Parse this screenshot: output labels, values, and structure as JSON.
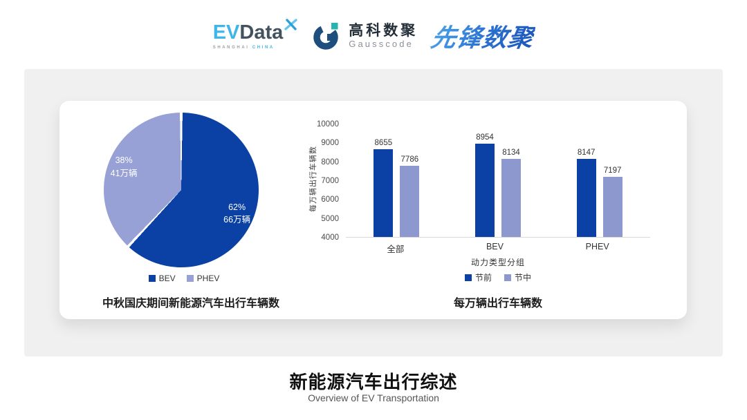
{
  "header": {
    "evdata": {
      "ev": "EV",
      "data": "Data",
      "sub_left": "SHANGHAI",
      "sub_right": "CHINA"
    },
    "gausscode": {
      "cn": "高科数聚",
      "en": "Gausscode"
    },
    "pioneer": {
      "text": "先锋数聚"
    }
  },
  "palette": {
    "primary_blue": "#0b41a5",
    "bar_light_periwinkle": "#8d99ce",
    "pie_light_periwinkle": "#97a1d6",
    "panel_gray": "#f0f0f0",
    "evdata_blue": "#3fb6e8",
    "evdata_slate": "#42525f",
    "gauss_navy": "#1d4e7e",
    "gauss_teal": "#25b4af"
  },
  "chart_data": [
    {
      "type": "pie",
      "title": "中秋国庆期间新能源汽车出行车辆数",
      "start_angle": "top-clockwise",
      "legend_position": "bottom",
      "slices": [
        {
          "label": "BEV",
          "percent": 62,
          "pct_label": "62%",
          "count_label": "66万辆",
          "color": "#0b41a5"
        },
        {
          "label": "PHEV",
          "percent": 38,
          "pct_label": "38%",
          "count_label": "41万辆",
          "color": "#97a1d6"
        }
      ]
    },
    {
      "type": "bar",
      "title": "每万辆出行车辆数",
      "categories": [
        "全部",
        "BEV",
        "PHEV"
      ],
      "series": [
        {
          "name": "节前",
          "values": [
            8655,
            8954,
            8147
          ],
          "color": "#0b41a5"
        },
        {
          "name": "节中",
          "values": [
            7786,
            8134,
            7197
          ],
          "color": "#8d99ce"
        }
      ],
      "xlabel": "动力类型分组",
      "ylabel": "每万辆出行车辆数",
      "ylim": [
        4000,
        10000
      ],
      "ytick_step": 1000,
      "grid": false,
      "legend_position": "bottom"
    }
  ],
  "footer": {
    "title": "新能源汽车出行综述",
    "subtitle": "Overview of EV Transportation"
  }
}
